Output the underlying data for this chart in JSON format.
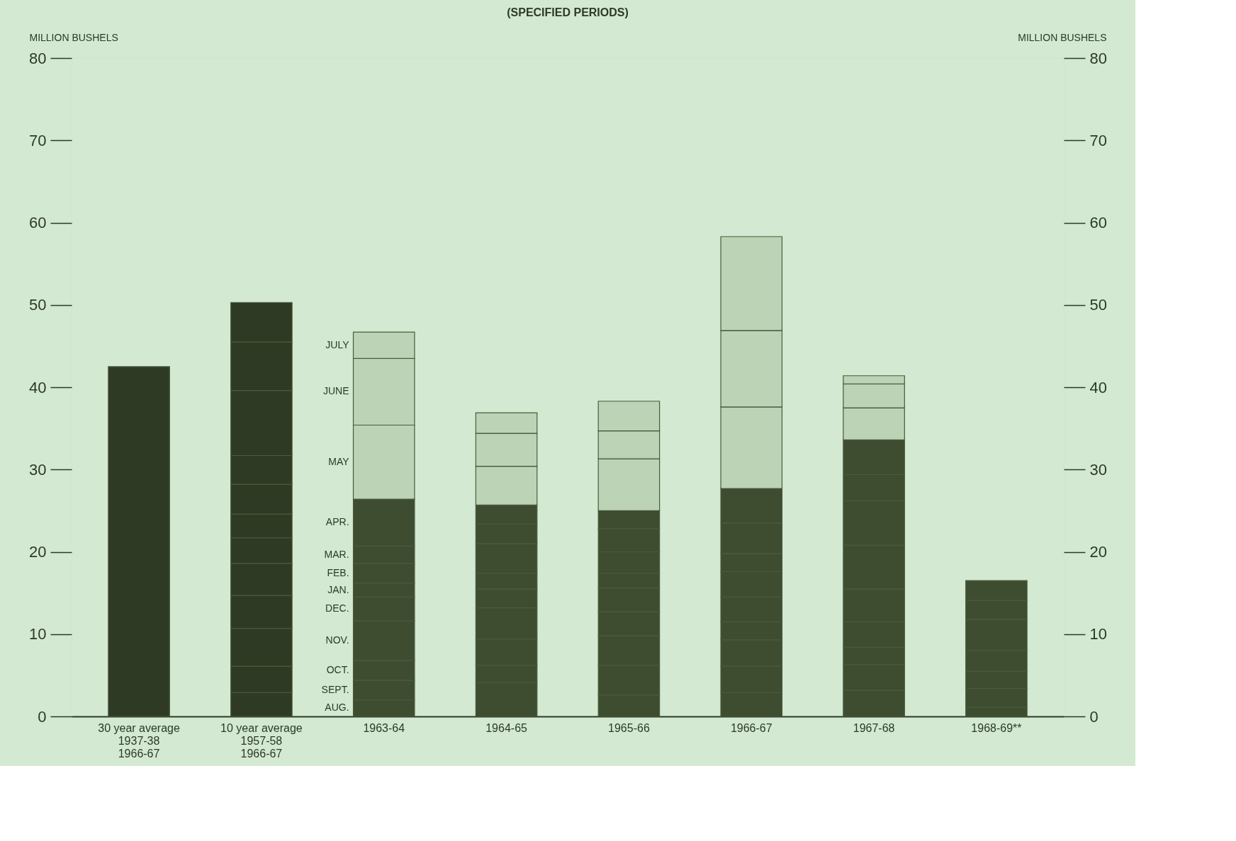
{
  "chart_data": {
    "type": "bar",
    "stacked": true,
    "title": "(SPECIFIED PERIODS)",
    "ylabel": "MILLION BUSHELS",
    "y2label": "MILLION BUSHELS",
    "categories": [
      "30 year average\n1937-38\n1966-67",
      "10 year average\n1957-58\n1966-67",
      "1963-64",
      "1964-65",
      "1965-66",
      "1966-67",
      "1967-68",
      "1968-69**"
    ],
    "ylim": [
      0,
      80
    ],
    "yticks": [
      0,
      10,
      20,
      30,
      40,
      50,
      60,
      70,
      80
    ],
    "y2lim": [
      0,
      80
    ],
    "y2ticks": [
      0,
      10,
      20,
      30,
      40,
      50,
      60,
      70,
      80
    ],
    "grid": false,
    "series": [
      {
        "color": "#2f3a25",
        "values": [
          42.5,
          null,
          null,
          null,
          null,
          null,
          null,
          null
        ]
      },
      {
        "name": "AUG.",
        "colors": [
          null,
          "#2f3a25",
          "#3e4c30",
          "#3e4c30",
          "#3e4c30",
          "#3e4c30",
          "#3e4c30",
          "#3e4c30"
        ],
        "values": [
          null,
          2.9,
          2.0,
          4.1,
          2.6,
          2.9,
          3.2,
          1.1
        ]
      },
      {
        "name": "SEPT.",
        "colors": [
          null,
          "#2f3a25",
          "#3e4c30",
          "#3e4c30",
          "#3e4c30",
          "#3e4c30",
          "#3e4c30",
          "#3e4c30"
        ],
        "values": [
          null,
          3.2,
          2.4,
          2.1,
          3.6,
          3.2,
          3.1,
          2.3
        ]
      },
      {
        "name": "OCT.",
        "colors": [
          null,
          "#2f3a25",
          "#3e4c30",
          "#3e4c30",
          "#3e4c30",
          "#3e4c30",
          "#3e4c30",
          "#3e4c30"
        ],
        "values": [
          null,
          4.6,
          2.4,
          3.2,
          3.6,
          3.2,
          2.1,
          2.1
        ]
      },
      {
        "name": "NOV.",
        "colors": [
          null,
          "#2f3a25",
          "#3e4c30",
          "#3e4c30",
          "#3e4c30",
          "#3e4c30",
          "#3e4c30",
          "#3e4c30"
        ],
        "values": [
          null,
          4.0,
          4.8,
          3.8,
          2.9,
          2.2,
          3.1,
          2.5
        ]
      },
      {
        "name": "DEC.",
        "colors": [
          null,
          "#2f3a25",
          "#3e4c30",
          "#3e4c30",
          "#3e4c30",
          "#3e4c30",
          "#3e4c30",
          "#3e4c30"
        ],
        "values": [
          null,
          3.9,
          2.9,
          2.3,
          2.9,
          3.0,
          4.0,
          3.8
        ]
      },
      {
        "name": "JAN.",
        "colors": [
          null,
          "#2f3a25",
          "#3e4c30",
          "#3e4c30",
          "#3e4c30",
          "#3e4c30",
          "#3e4c30",
          "#3e4c30"
        ],
        "values": [
          null,
          3.1,
          1.7,
          1.9,
          1.8,
          3.1,
          5.3,
          2.3
        ]
      },
      {
        "name": "FEB.",
        "colors": [
          null,
          "#2f3a25",
          "#3e4c30",
          "#3e4c30",
          "#3e4c30",
          "#3e4c30",
          "#3e4c30",
          "#3e4c30"
        ],
        "values": [
          null,
          2.9,
          2.4,
          3.6,
          2.6,
          2.2,
          5.4,
          2.4
        ]
      },
      {
        "name": "MAR.",
        "colors": [
          null,
          "#2f3a25",
          "#3e4c30",
          "#3e4c30",
          "#3e4c30",
          "#3e4c30",
          "#3e4c30",
          null
        ],
        "values": [
          null,
          3.6,
          2.1,
          2.4,
          2.8,
          3.7,
          3.2,
          null
        ]
      },
      {
        "name": "APR.",
        "colors": [
          null,
          "#2f3a25",
          "#3e4c30",
          "#3e4c30",
          "#3e4c30",
          "#3e4c30",
          "#3e4c30",
          null
        ],
        "values": [
          null,
          3.5,
          5.7,
          2.3,
          2.2,
          4.2,
          4.2,
          null
        ]
      },
      {
        "name": "MAY",
        "colors": [
          null,
          "#2f3a25",
          "#bcd3b6",
          "#bcd3b6",
          "#bcd3b6",
          "#bcd3b6",
          "#bcd3b6",
          null
        ],
        "values": [
          null,
          7.9,
          9.0,
          4.7,
          6.3,
          9.9,
          3.9,
          null
        ]
      },
      {
        "name": "JUNE",
        "colors": [
          null,
          "#2f3a25",
          "#bcd3b6",
          "#bcd3b6",
          "#bcd3b6",
          "#bcd3b6",
          "#bcd3b6",
          null
        ],
        "values": [
          null,
          5.9,
          8.1,
          4.0,
          3.4,
          9.3,
          2.9,
          null
        ]
      },
      {
        "name": "JULY",
        "colors": [
          null,
          "#2f3a25",
          "#bcd3b6",
          "#bcd3b6",
          "#bcd3b6",
          "#bcd3b6",
          "#bcd3b6",
          null
        ],
        "values": [
          null,
          4.8,
          3.2,
          2.5,
          3.6,
          11.4,
          1.0,
          null
        ]
      }
    ]
  }
}
